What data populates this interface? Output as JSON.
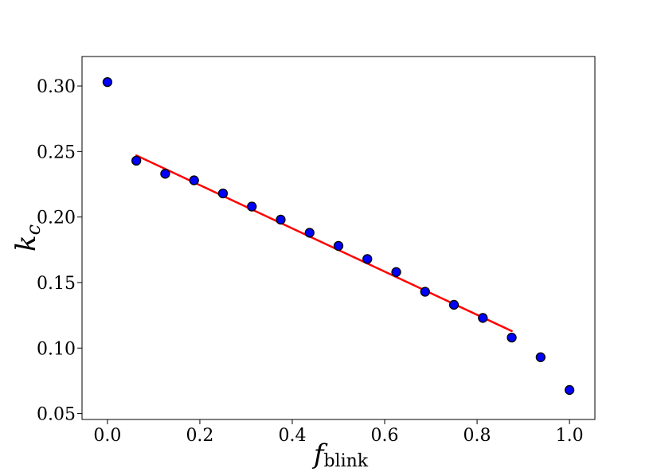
{
  "chart_data": {
    "type": "scatter",
    "title": "",
    "xlabel": {
      "main": "f",
      "sub": "blink"
    },
    "ylabel": {
      "main": "k",
      "sub": "c"
    },
    "xlim": [
      -0.055,
      1.055
    ],
    "ylim": [
      0.0455,
      0.3225
    ],
    "xticks": [
      0.0,
      0.2,
      0.4,
      0.6,
      0.8,
      1.0
    ],
    "xtick_labels": [
      "0.0",
      "0.2",
      "0.4",
      "0.6",
      "0.8",
      "1.0"
    ],
    "yticks": [
      0.05,
      0.1,
      0.15,
      0.2,
      0.25,
      0.3
    ],
    "ytick_labels": [
      "0.05",
      "0.10",
      "0.15",
      "0.20",
      "0.25",
      "0.30"
    ],
    "grid": false,
    "legend": "none",
    "series": [
      {
        "kind": "scatter",
        "marker_color": "#0000ff",
        "edge_color": "#000000",
        "x": [
          0.0,
          0.0625,
          0.125,
          0.1875,
          0.25,
          0.3125,
          0.375,
          0.4375,
          0.5,
          0.5625,
          0.625,
          0.6875,
          0.75,
          0.8125,
          0.875,
          0.9375,
          1.0
        ],
        "y": [
          0.303,
          0.243,
          0.233,
          0.228,
          0.218,
          0.208,
          0.198,
          0.188,
          0.178,
          0.168,
          0.158,
          0.143,
          0.133,
          0.123,
          0.108,
          0.093,
          0.068
        ]
      },
      {
        "kind": "line",
        "color": "#ff0000",
        "x": [
          0.0625,
          0.875
        ],
        "y": [
          0.247,
          0.113
        ]
      }
    ]
  }
}
